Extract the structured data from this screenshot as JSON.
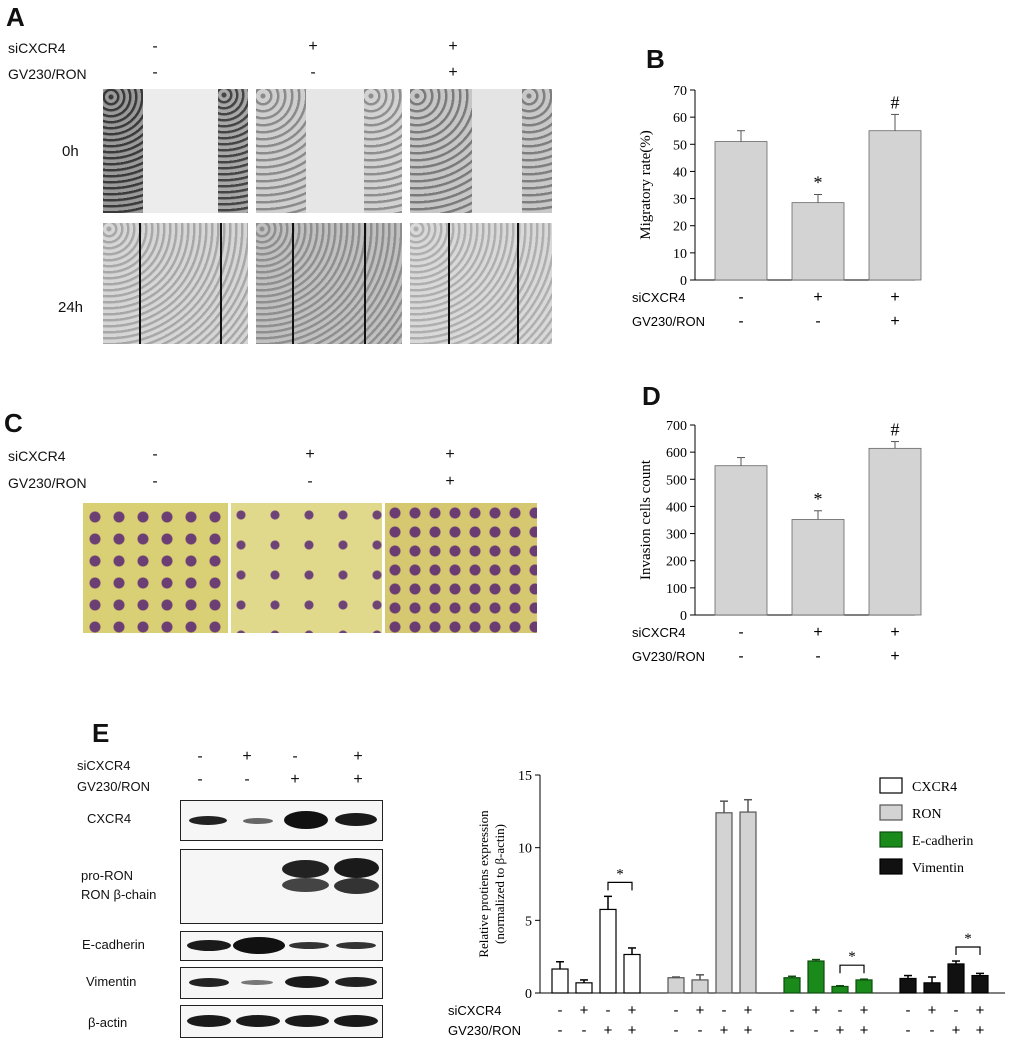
{
  "panels": {
    "A": {
      "letter": "A",
      "row_labels": [
        "siCXCR4",
        "GV230/RON"
      ],
      "signs": [
        [
          "-",
          "+",
          "+"
        ],
        [
          "-",
          "-",
          "+"
        ]
      ],
      "time_labels": [
        "0h",
        "24h"
      ]
    },
    "B": {
      "letter": "B"
    },
    "C": {
      "letter": "C",
      "row_labels": [
        "siCXCR4",
        "GV230/RON"
      ],
      "signs": [
        [
          "-",
          "+",
          "+"
        ],
        [
          "-",
          "-",
          "+"
        ]
      ]
    },
    "D": {
      "letter": "D"
    },
    "E": {
      "letter": "E",
      "row_labels": [
        "siCXCR4",
        "GV230/RON"
      ],
      "signs": [
        [
          "-",
          "+",
          "-",
          "+"
        ],
        [
          "-",
          "-",
          "+",
          "+"
        ]
      ],
      "blot_labels": [
        "CXCR4",
        "pro-RON",
        "RON β-chain",
        "E-cadherin",
        "Vimentin",
        "β-actin"
      ]
    }
  },
  "colors": {
    "bar_gray": "#d3d3d3",
    "green": "#1a8a1a",
    "black": "#111111",
    "white": "#ffffff"
  },
  "chart_data": [
    {
      "id": "B",
      "type": "bar",
      "ylabel": "Migratory rate(%)",
      "ylim": [
        0,
        70
      ],
      "yticks": [
        0,
        10,
        20,
        30,
        40,
        50,
        60,
        70
      ],
      "values": [
        51,
        28.5,
        55
      ],
      "errors": [
        4,
        3,
        6
      ],
      "annotations": [
        "",
        "*",
        "#"
      ],
      "factor_labels": [
        "siCXCR4",
        "GV230/RON"
      ],
      "factor_signs": [
        [
          "-",
          "+",
          "+"
        ],
        [
          "-",
          "-",
          "+"
        ]
      ]
    },
    {
      "id": "D",
      "type": "bar",
      "ylabel": "Invasion cells count",
      "ylim": [
        0,
        700
      ],
      "yticks": [
        0,
        100,
        200,
        300,
        400,
        500,
        600,
        700
      ],
      "values": [
        550,
        352,
        614
      ],
      "errors": [
        30,
        32,
        25
      ],
      "annotations": [
        "",
        "*",
        "#"
      ],
      "factor_labels": [
        "siCXCR4",
        "GV230/RON"
      ],
      "factor_signs": [
        [
          "-",
          "+",
          "+"
        ],
        [
          "-",
          "-",
          "+"
        ]
      ]
    },
    {
      "id": "E",
      "type": "bar",
      "ylabel": "Relative protiens expression",
      "ylabel2": "(normalized to β-actin)",
      "ylim": [
        0,
        15
      ],
      "yticks": [
        0,
        5,
        10,
        15
      ],
      "series": [
        {
          "name": "CXCR4",
          "values": [
            1.65,
            0.7,
            5.75,
            2.65
          ],
          "errors": [
            0.5,
            0.2,
            0.9,
            0.45
          ]
        },
        {
          "name": "RON",
          "values": [
            1.05,
            0.9,
            12.4,
            12.45
          ],
          "errors": [
            0.05,
            0.35,
            0.8,
            0.85
          ]
        },
        {
          "name": "E-cadherin",
          "values": [
            1.05,
            2.2,
            0.45,
            0.9
          ],
          "errors": [
            0.1,
            0.1,
            0.05,
            0.05
          ]
        },
        {
          "name": "Vimentin",
          "values": [
            1.0,
            0.7,
            2.0,
            1.2
          ],
          "errors": [
            0.2,
            0.4,
            0.2,
            0.15
          ]
        }
      ],
      "significance": [
        {
          "series": 0,
          "from": 2,
          "to": 3,
          "label": "*"
        },
        {
          "series": 2,
          "from": 2,
          "to": 3,
          "label": "*"
        },
        {
          "series": 3,
          "from": 2,
          "to": 3,
          "label": "*"
        }
      ],
      "factor_labels": [
        "siCXCR4",
        "GV230/RON"
      ],
      "factor_signs": [
        [
          "-",
          "+",
          "-",
          "+"
        ],
        [
          "-",
          "-",
          "+",
          "+"
        ]
      ],
      "legend_position": "top-right"
    }
  ]
}
